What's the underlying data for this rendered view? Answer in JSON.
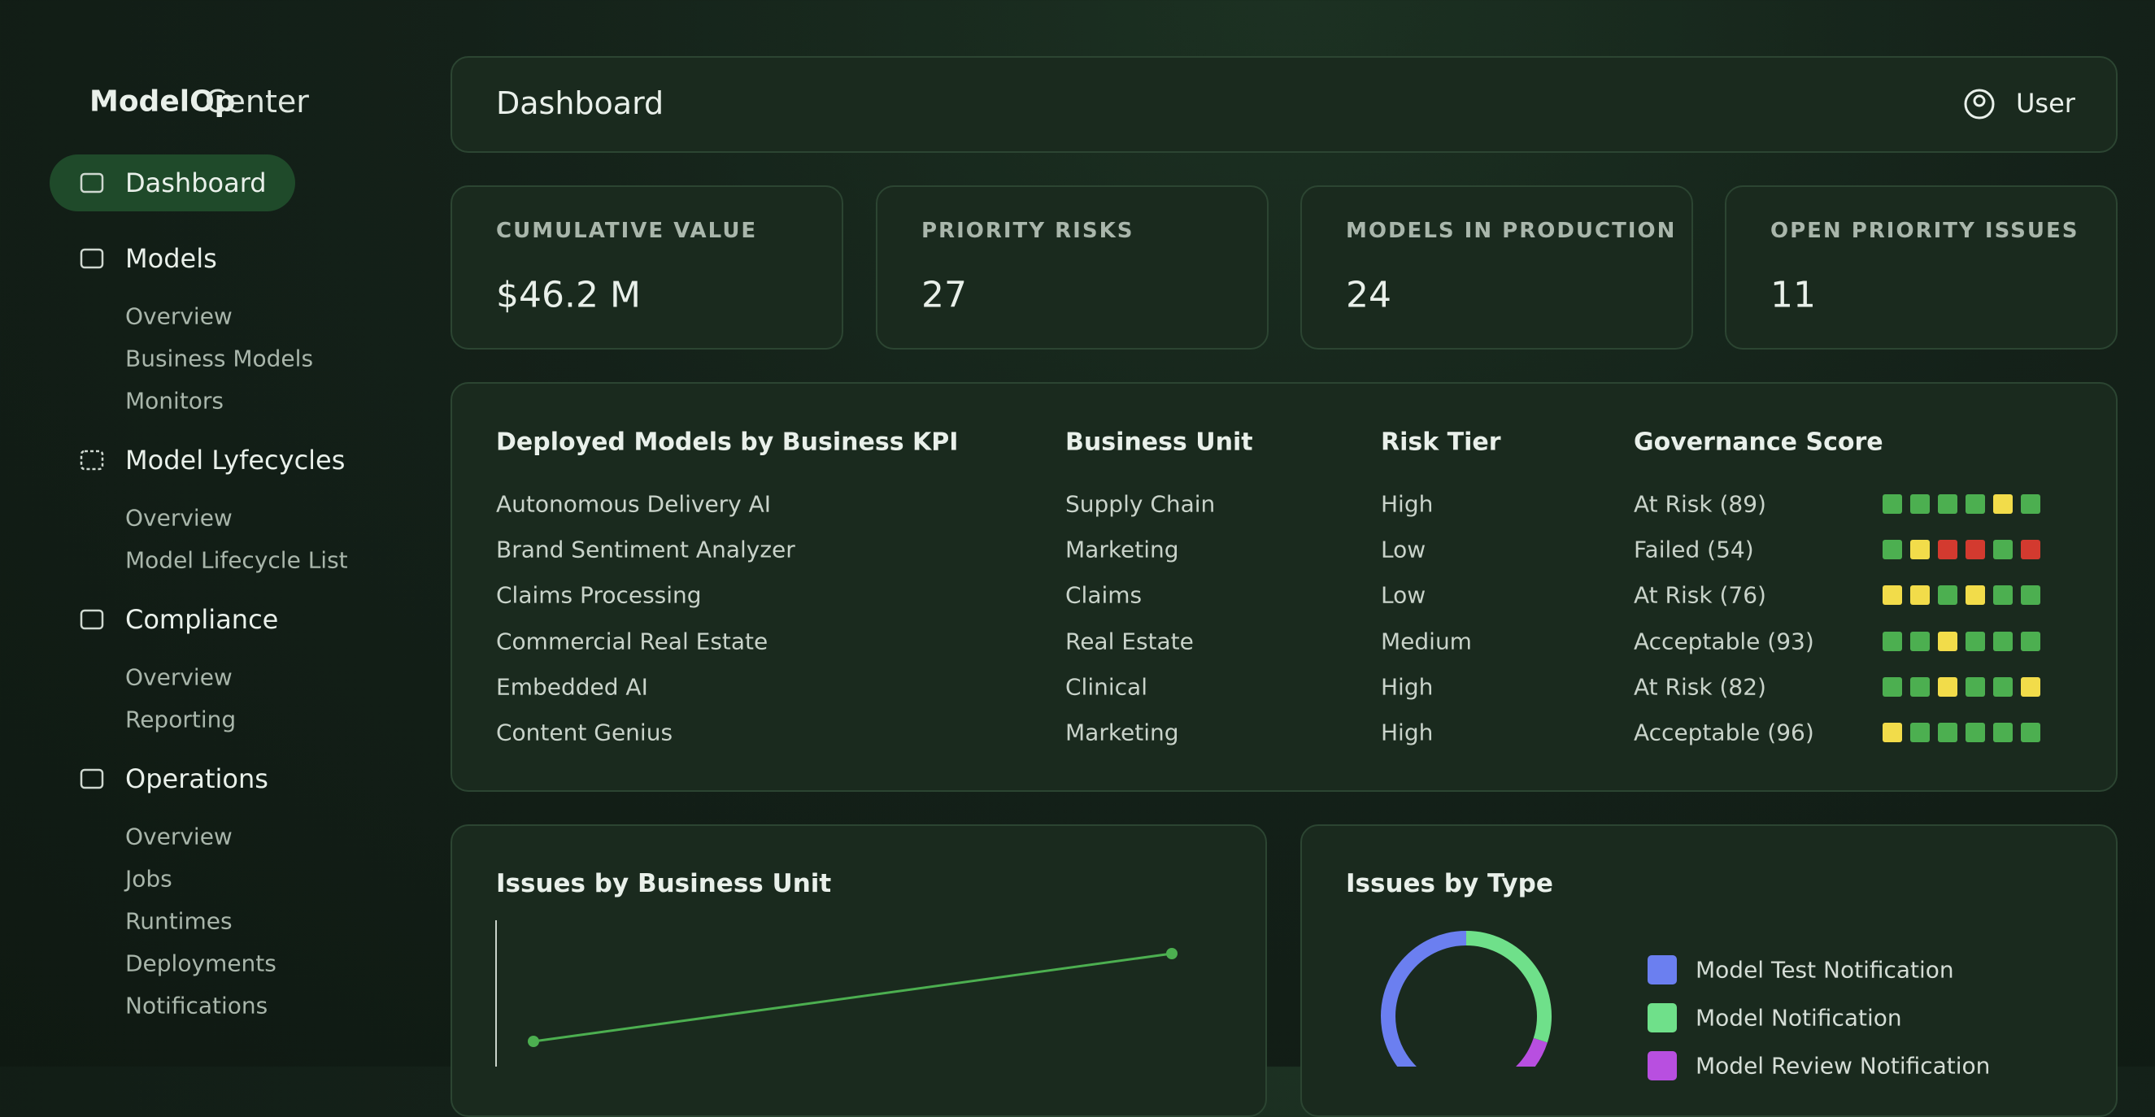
{
  "brand": {
    "name": "ModelOp",
    "product": "Center"
  },
  "nav": [
    {
      "label": "Dashboard",
      "active": true,
      "items": []
    },
    {
      "label": "Models",
      "active": false,
      "items": [
        "Overview",
        "Business Models",
        "Monitors"
      ]
    },
    {
      "label": "Model Lyfecycles",
      "active": false,
      "items": [
        "Overview",
        "Model Lifecycle List"
      ]
    },
    {
      "label": "Compliance",
      "active": false,
      "items": [
        "Overview",
        "Reporting"
      ]
    },
    {
      "label": "Operations",
      "active": false,
      "items": [
        "Overview",
        "Jobs",
        "Runtimes",
        "Deployments",
        "Notifications"
      ]
    }
  ],
  "header": {
    "title": "Dashboard",
    "user": "User"
  },
  "stats": [
    {
      "label": "CUMULATIVE VALUE",
      "value": "$46.2 M"
    },
    {
      "label": "PRIORITY RISKS",
      "value": "27"
    },
    {
      "label": "MODELS IN PRODUCTION",
      "value": "24"
    },
    {
      "label": "OPEN PRIORITY ISSUES",
      "value": "11"
    }
  ],
  "table": {
    "columns": [
      "Deployed Models by Business KPI",
      "Business Unit",
      "Risk Tier",
      "Governance Score"
    ],
    "rows": [
      {
        "model": "Autonomous Delivery AI",
        "unit": "Supply Chain",
        "tier": "High",
        "score": "At Risk (89)",
        "squares": [
          "#4caf50",
          "#4caf50",
          "#4caf50",
          "#4caf50",
          "#f2dc4a",
          "#4caf50"
        ]
      },
      {
        "model": "Brand Sentiment Analyzer",
        "unit": "Marketing",
        "tier": "Low",
        "score": "Failed (54)",
        "squares": [
          "#4caf50",
          "#f2dc4a",
          "#d33a2f",
          "#d33a2f",
          "#4caf50",
          "#d33a2f"
        ]
      },
      {
        "model": "Claims Processing",
        "unit": "Claims",
        "tier": "Low",
        "score": "At Risk (76)",
        "squares": [
          "#f2dc4a",
          "#f2dc4a",
          "#4caf50",
          "#f2dc4a",
          "#4caf50",
          "#4caf50"
        ]
      },
      {
        "model": "Commercial Real Estate",
        "unit": "Real Estate",
        "tier": "Medium",
        "score": "Acceptable (93)",
        "squares": [
          "#4caf50",
          "#4caf50",
          "#f2dc4a",
          "#4caf50",
          "#4caf50",
          "#4caf50"
        ]
      },
      {
        "model": "Embedded AI",
        "unit": "Clinical",
        "tier": "High",
        "score": "At Risk (82)",
        "squares": [
          "#4caf50",
          "#4caf50",
          "#f2dc4a",
          "#4caf50",
          "#4caf50",
          "#f2dc4a"
        ]
      },
      {
        "model": "Content Genius",
        "unit": "Marketing",
        "tier": "High",
        "score": "Acceptable (96)",
        "squares": [
          "#f2dc4a",
          "#4caf50",
          "#4caf50",
          "#4caf50",
          "#4caf50",
          "#4caf50"
        ]
      }
    ]
  },
  "issues_by_business_unit": {
    "title": "Issues by Business Unit"
  },
  "issues_by_type": {
    "title": "Issues by Type",
    "series": [
      {
        "name": "Model Test Notification",
        "color": "#6b7ff0",
        "value": 55
      },
      {
        "name": "Model Notification",
        "color": "#6fe08a",
        "value": 30
      },
      {
        "name": "Model Review Notification",
        "color": "#b84fe0",
        "value": 15
      }
    ]
  }
}
